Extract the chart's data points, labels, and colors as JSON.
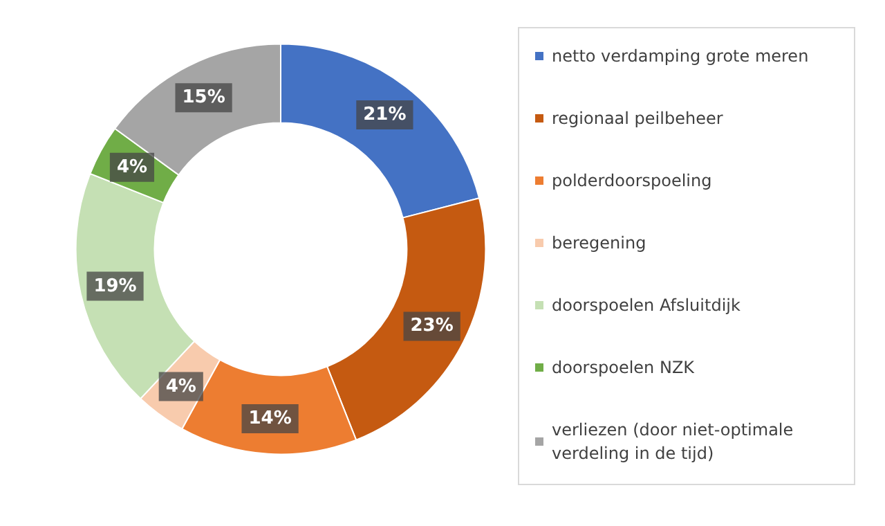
{
  "chart_data": {
    "type": "donut",
    "categories": [
      "netto verdamping grote meren",
      "regionaal peilbeheer",
      "polderdoorspoeling",
      "beregening",
      "doorspoelen Afsluitdijk",
      "doorspoelen NZK",
      "verliezen (door niet-optimale verdeling in de tijd)"
    ],
    "values": [
      21,
      23,
      14,
      4,
      19,
      4,
      15
    ],
    "value_labels": [
      "21%",
      "23%",
      "14%",
      "4%",
      "19%",
      "4%",
      "15%"
    ],
    "colors": [
      "#4472c4",
      "#c55a11",
      "#ed7d31",
      "#f8cbad",
      "#c5e0b4",
      "#70ad47",
      "#a5a5a5"
    ],
    "legend": "right"
  }
}
